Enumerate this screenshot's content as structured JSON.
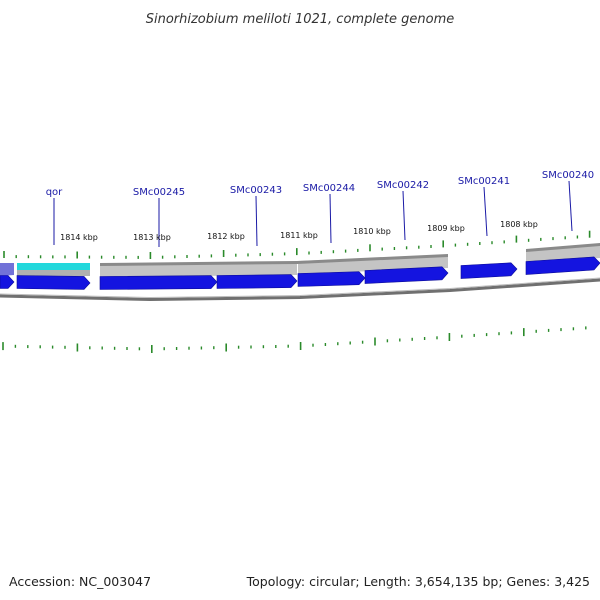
{
  "title": "Sinorhizobium meliloti 1021, complete genome",
  "footer": {
    "accession": "Accession: NC_003047",
    "summary": "Topology: circular; Length: 3,654,135 bp; Genes: 3,425"
  },
  "colors": {
    "gene_arrow": "#1414e0",
    "qor_region": "#22d8dc",
    "region_gray": "#b8b8b8",
    "tick": "#2a8a2a",
    "gene_label": "#1a1aa6",
    "backbone": "#7f7f7f"
  },
  "gene_labels": [
    "qor",
    "SMc00245",
    "SMc00243",
    "SMc00244",
    "SMc00242",
    "SMc00241",
    "SMc00240"
  ],
  "kbp_labels": [
    "1814 kbp",
    "1813 kbp",
    "1812 kbp",
    "1811 kbp",
    "1810 kbp",
    "1809 kbp",
    "1808 kbp"
  ]
}
